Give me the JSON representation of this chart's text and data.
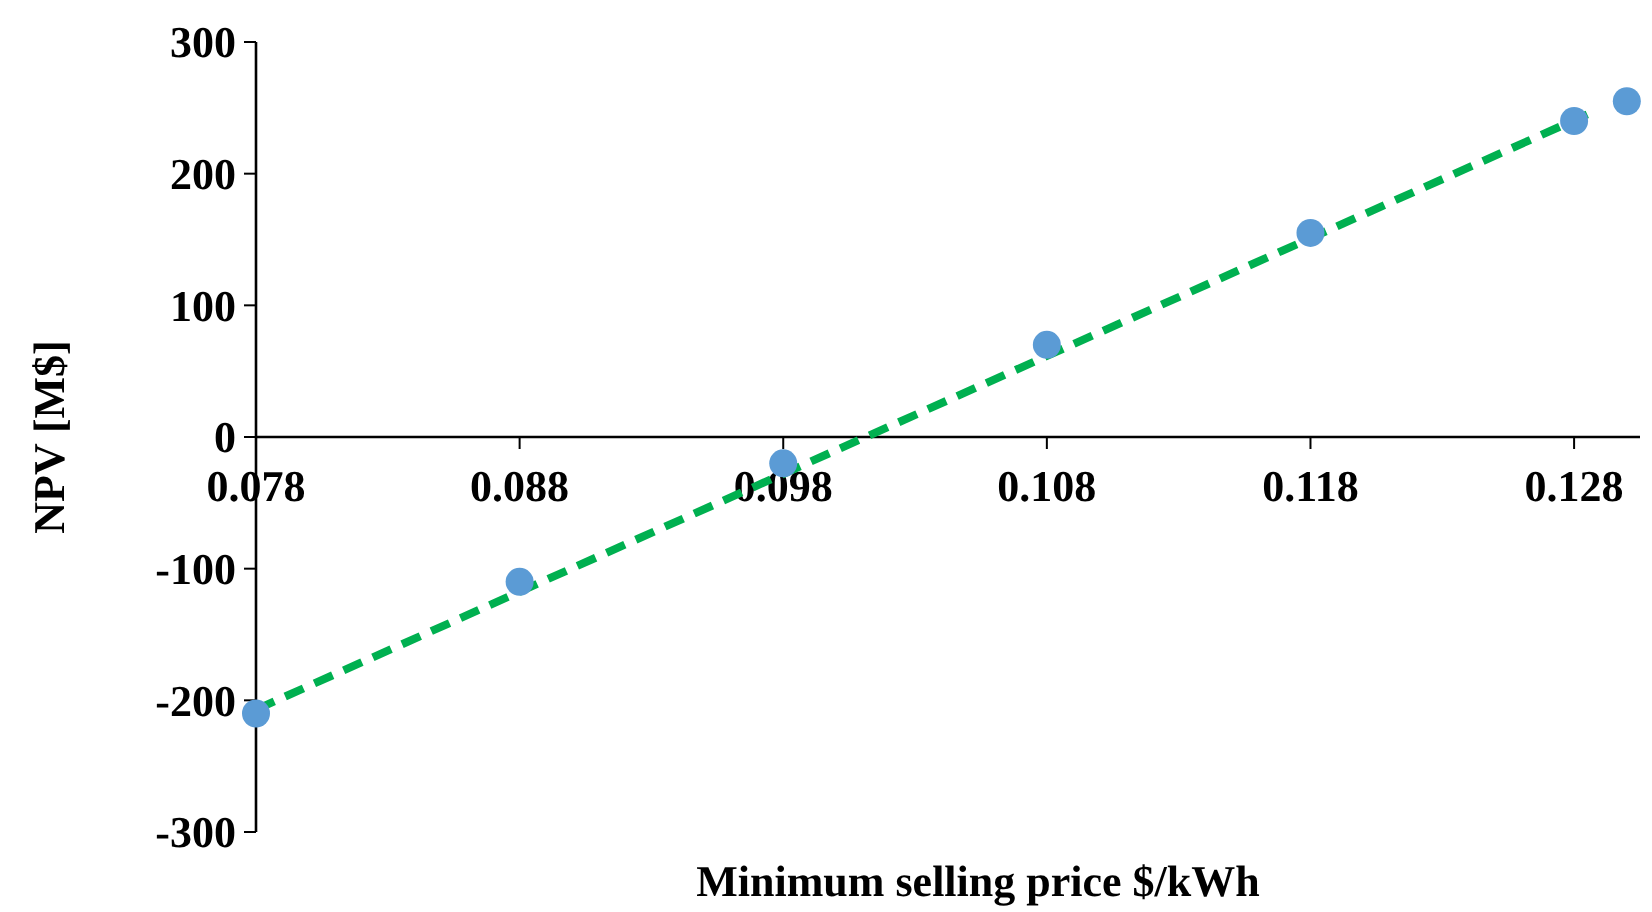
{
  "chart_data": {
    "type": "scatter",
    "xlabel": "Minimum selling price $/kWh",
    "ylabel": "NPV [M$]",
    "xlim": [
      0.078,
      0.1305
    ],
    "xticks": [
      0.078,
      0.088,
      0.098,
      0.108,
      0.118,
      0.128
    ],
    "ylim": [
      -300,
      300
    ],
    "yticks": [
      -300,
      -200,
      -100,
      0,
      100,
      200,
      300
    ],
    "grid": false,
    "marker": "circle",
    "series": [
      {
        "color": "#5b9bd5",
        "x": [
          0.078,
          0.088,
          0.098,
          0.108,
          0.118,
          0.128,
          0.13
        ],
        "values": [
          -210,
          -110,
          -20,
          70,
          155,
          240,
          255
        ]
      },
      {
        "type": "line",
        "color": "#00b050",
        "line_style": "dashed",
        "marker": "none",
        "x": [
          0.078,
          0.1285
        ],
        "values": [
          -207,
          245
        ]
      }
    ]
  }
}
